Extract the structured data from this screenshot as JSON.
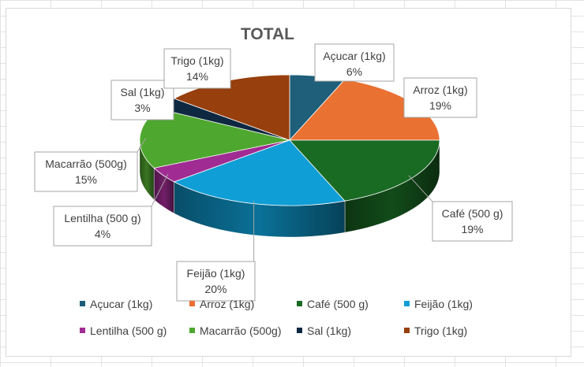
{
  "chart_data": {
    "type": "pie",
    "title": "TOTAL",
    "categories": [
      "Açucar (1kg)",
      "Arroz (1kg)",
      "Café (500 g)",
      "Feijão  (1kg)",
      "Lentilha (500 g)",
      "Macarrão (500g)",
      "Sal (1kg)",
      "Trigo (1kg)"
    ],
    "values": [
      6,
      19,
      19,
      20,
      4,
      15,
      3,
      14
    ],
    "data_labels": [
      "6%",
      "19%",
      "19%",
      "20%",
      "4%",
      "15%",
      "3%",
      "14%"
    ],
    "colors": [
      "#1f5f7a",
      "#e97132",
      "#196b24",
      "#0f9ed5",
      "#a02b93",
      "#4ea72e",
      "#0e2841",
      "#973f0d"
    ],
    "legend_position": "bottom",
    "style": "3d-pie"
  }
}
